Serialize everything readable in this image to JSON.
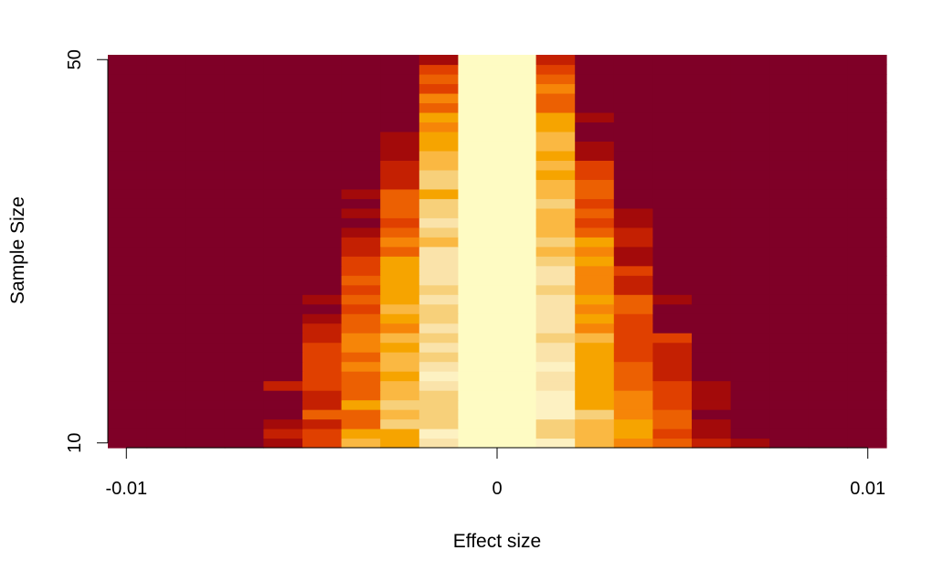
{
  "chart_data": {
    "type": "heatmap",
    "xlabel": "Effect size",
    "ylabel": "Sample Size",
    "x_ticks": [
      {
        "value": -0.01,
        "label": "-0.01"
      },
      {
        "value": 0,
        "label": "0"
      },
      {
        "value": 0.01,
        "label": "0.01"
      }
    ],
    "y_ticks": [
      {
        "value": 10,
        "label": "10"
      },
      {
        "value": 50,
        "label": "50"
      }
    ],
    "xlim": [
      -0.0105,
      0.0105
    ],
    "ylim": [
      9.5,
      50.5
    ],
    "x_bins": 20,
    "y_values": [
      10,
      50
    ],
    "color_scale": [
      "#7f0027",
      "#a30a0a",
      "#c42002",
      "#e04000",
      "#ec6002",
      "#f68508",
      "#f6a400",
      "#fab842",
      "#f7d07a",
      "#fae3aa",
      "#fdf1c2",
      "#fefbc3"
    ],
    "rows": [
      {
        "level": 0,
        "x_from": 0.0048,
        "x_to": 0.0053,
        "level_in": 3
      }
    ],
    "grid": false,
    "legend": "none"
  }
}
